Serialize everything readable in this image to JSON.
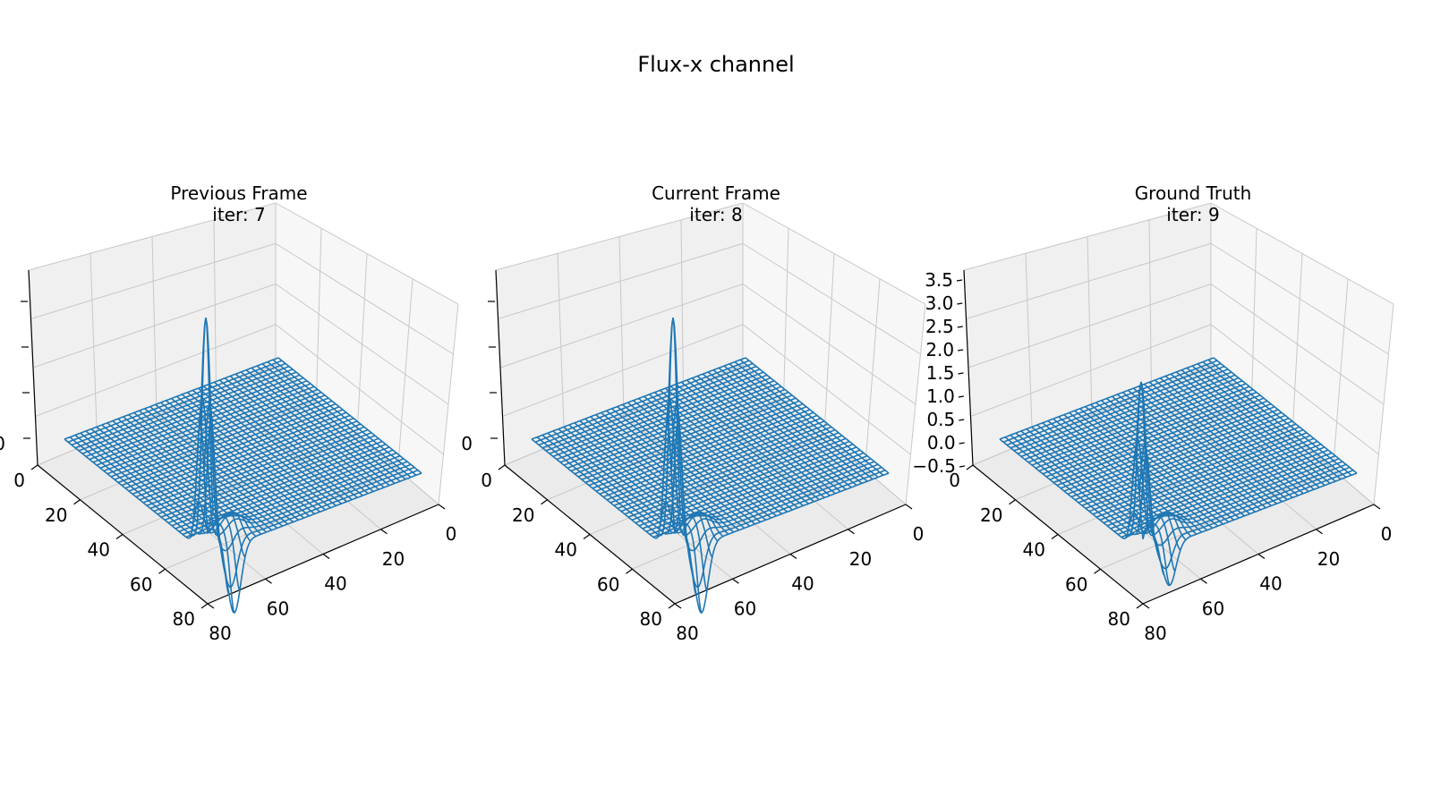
{
  "figure": {
    "title": "Flux-x channel"
  },
  "colors": {
    "surface": "#1f77b4",
    "pane_light": "#f7f7f7",
    "pane_mid": "#f0f0f0",
    "pane_dark": "#ebebeb",
    "grid": "#c8c8c8",
    "axis": "#000000"
  },
  "panels": [
    {
      "title": "Previous Frame",
      "subtitle": "iter: 7"
    },
    {
      "title": "Current Frame",
      "subtitle": "iter: 8"
    },
    {
      "title": "Ground Truth",
      "subtitle": "iter: 9"
    }
  ],
  "chart_data": [
    {
      "type": "surface-3d-wireframe",
      "title": "Previous Frame",
      "subtitle": "iter: 7",
      "grid_size": 80,
      "x_ticks": [
        "0",
        "20",
        "40",
        "60",
        "80"
      ],
      "y_ticks": [
        "0",
        "20",
        "40",
        "60",
        "80"
      ],
      "z_ticks": [
        "0",
        ""
      ],
      "zlim": [
        -0.5,
        3.5
      ],
      "note": "Spike near x≈70–80, y≈0 extends past visible z range; remainder of surface ≈0",
      "peak": {
        "x": 76,
        "y": 2,
        "value": 5.0
      },
      "trough": {
        "x": 80,
        "y": 10,
        "value": -1.5
      }
    },
    {
      "type": "surface-3d-wireframe",
      "title": "Current Frame",
      "subtitle": "iter: 8",
      "grid_size": 80,
      "x_ticks": [
        "0",
        "20",
        "40",
        "60",
        "80"
      ],
      "y_ticks": [
        "0",
        "20",
        "40",
        "60",
        "80"
      ],
      "z_ticks": [
        "0",
        ""
      ],
      "zlim": [
        -0.5,
        3.5
      ],
      "peak": {
        "x": 76,
        "y": 2,
        "value": 5.0
      },
      "trough": {
        "x": 80,
        "y": 10,
        "value": -1.5
      }
    },
    {
      "type": "surface-3d-wireframe",
      "title": "Ground Truth",
      "subtitle": "iter: 9",
      "grid_size": 80,
      "x_ticks": [
        "0",
        "20",
        "40",
        "60",
        "80"
      ],
      "y_ticks": [
        "0",
        "20",
        "40",
        "60",
        "80"
      ],
      "z_ticks": [
        "−0.5",
        "0.0",
        "0.5",
        "1.0",
        "1.5",
        "2.0",
        "2.5",
        "3.0",
        "3.5"
      ],
      "zlim": [
        -0.5,
        3.5
      ],
      "peak": {
        "x": 76,
        "y": 2,
        "value": 3.6
      },
      "trough": {
        "x": 80,
        "y": 10,
        "value": -0.9
      }
    }
  ]
}
